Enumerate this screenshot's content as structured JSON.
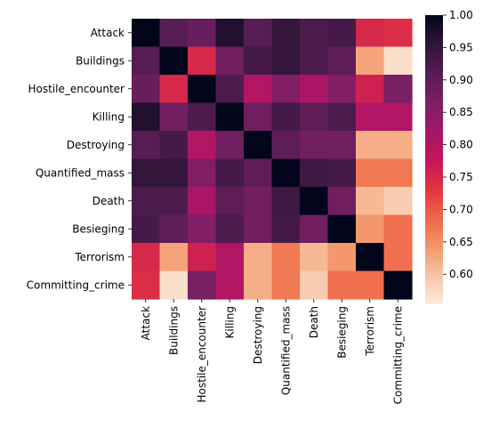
{
  "chart_data": {
    "type": "heatmap",
    "title": "",
    "xlabel": "",
    "ylabel": "",
    "categories": [
      "Attack",
      "Buildings",
      "Hostile_encounter",
      "Killing",
      "Destroying",
      "Quantified_mass",
      "Death",
      "Besieging",
      "Terrorism",
      "Committing_crime"
    ],
    "matrix": [
      [
        1.0,
        0.91,
        0.89,
        0.97,
        0.91,
        0.95,
        0.92,
        0.93,
        0.75,
        0.74
      ],
      [
        0.91,
        1.0,
        0.75,
        0.88,
        0.93,
        0.95,
        0.92,
        0.9,
        0.63,
        0.57
      ],
      [
        0.89,
        0.75,
        1.0,
        0.92,
        0.8,
        0.86,
        0.81,
        0.86,
        0.76,
        0.87
      ],
      [
        0.97,
        0.88,
        0.92,
        1.0,
        0.88,
        0.93,
        0.9,
        0.92,
        0.8,
        0.8
      ],
      [
        0.91,
        0.93,
        0.8,
        0.88,
        1.0,
        0.9,
        0.88,
        0.88,
        0.62,
        0.62
      ],
      [
        0.95,
        0.95,
        0.86,
        0.93,
        0.9,
        1.0,
        0.94,
        0.93,
        0.67,
        0.67
      ],
      [
        0.92,
        0.92,
        0.81,
        0.9,
        0.88,
        0.94,
        1.0,
        0.88,
        0.61,
        0.59
      ],
      [
        0.93,
        0.9,
        0.86,
        0.92,
        0.88,
        0.93,
        0.88,
        1.0,
        0.64,
        0.68
      ],
      [
        0.75,
        0.63,
        0.76,
        0.8,
        0.62,
        0.67,
        0.61,
        0.64,
        1.0,
        0.68
      ],
      [
        0.74,
        0.57,
        0.87,
        0.8,
        0.62,
        0.67,
        0.59,
        0.68,
        0.68,
        1.0
      ]
    ],
    "colormap": "rocket_r",
    "vmin": 0.555,
    "vmax": 1.0,
    "colorbar_ticks": [
      "0.60",
      "0.65",
      "0.70",
      "0.75",
      "0.80",
      "0.85",
      "0.90",
      "0.95",
      "1.00"
    ],
    "colorbar_tick_values": [
      0.6,
      0.65,
      0.7,
      0.75,
      0.8,
      0.85,
      0.9,
      0.95,
      1.0
    ],
    "grid": false,
    "colorbar_position": "right"
  }
}
